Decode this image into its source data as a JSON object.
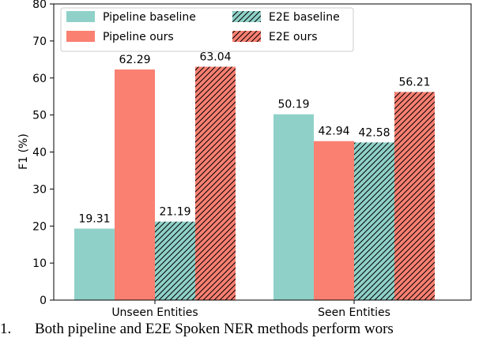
{
  "chart_data": {
    "type": "bar",
    "categories": [
      "Unseen Entities",
      "Seen Entities"
    ],
    "series": [
      {
        "name": "Pipeline baseline",
        "values": [
          19.31,
          50.19
        ],
        "color": "#8fd1c8",
        "hatch": false
      },
      {
        "name": "Pipeline ours",
        "values": [
          62.29,
          42.94
        ],
        "color": "#fa8072",
        "hatch": false
      },
      {
        "name": "E2E baseline",
        "values": [
          21.19,
          42.58
        ],
        "color": "#8fd1c8",
        "hatch": true
      },
      {
        "name": "E2E ours",
        "values": [
          63.04,
          56.21
        ],
        "color": "#fa8072",
        "hatch": true
      }
    ],
    "data_labels": [
      [
        "19.31",
        "50.19"
      ],
      [
        "62.29",
        "42.94"
      ],
      [
        "21.19",
        "42.58"
      ],
      [
        "63.04",
        "56.21"
      ]
    ],
    "ylabel": "F1 (%)",
    "xlabel": "",
    "title": "",
    "ylim": [
      0,
      80
    ],
    "yticks": [
      "0",
      "10",
      "20",
      "30",
      "40",
      "50",
      "60",
      "70",
      "80"
    ],
    "legend": {
      "position": "top-left",
      "columns": 2
    },
    "grid": false
  },
  "caption": {
    "label": "1.",
    "text": "Both pipeline and E2E Spoken NER methods perform wors"
  }
}
